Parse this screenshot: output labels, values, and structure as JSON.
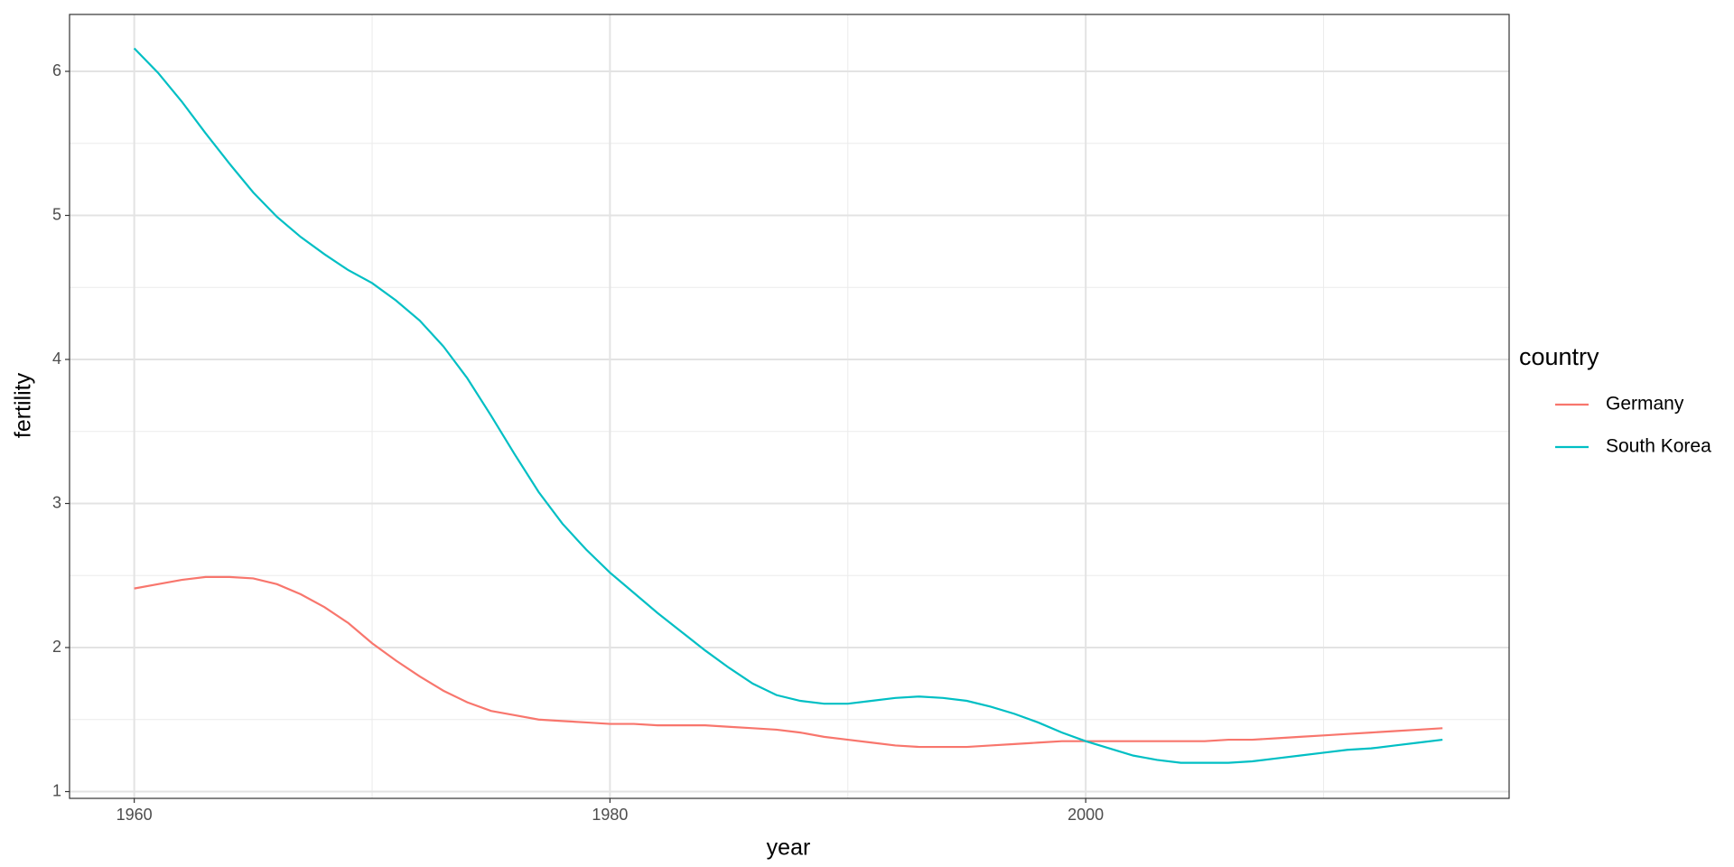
{
  "chart_data": {
    "type": "line",
    "x_label": "year",
    "y_label": "fertility",
    "legend_title": "country",
    "legend_position": "right",
    "grid": true,
    "x": [
      1960,
      1961,
      1962,
      1963,
      1964,
      1965,
      1966,
      1967,
      1968,
      1969,
      1970,
      1971,
      1972,
      1973,
      1974,
      1975,
      1976,
      1977,
      1978,
      1979,
      1980,
      1981,
      1982,
      1983,
      1984,
      1985,
      1986,
      1987,
      1988,
      1989,
      1990,
      1991,
      1992,
      1993,
      1994,
      1995,
      1996,
      1997,
      1998,
      1999,
      2000,
      2001,
      2002,
      2003,
      2004,
      2005,
      2006,
      2007,
      2008,
      2009,
      2010,
      2011,
      2012,
      2013,
      2014,
      2015
    ],
    "series": [
      {
        "name": "Germany",
        "color": "#f8766d",
        "values": [
          2.41,
          2.44,
          2.47,
          2.49,
          2.49,
          2.48,
          2.44,
          2.37,
          2.28,
          2.17,
          2.03,
          1.91,
          1.8,
          1.7,
          1.62,
          1.56,
          1.53,
          1.5,
          1.49,
          1.48,
          1.47,
          1.47,
          1.46,
          1.46,
          1.46,
          1.45,
          1.44,
          1.43,
          1.41,
          1.38,
          1.36,
          1.34,
          1.32,
          1.31,
          1.31,
          1.31,
          1.32,
          1.33,
          1.34,
          1.35,
          1.35,
          1.35,
          1.35,
          1.35,
          1.35,
          1.35,
          1.36,
          1.36,
          1.37,
          1.38,
          1.39,
          1.4,
          1.41,
          1.42,
          1.43,
          1.44
        ]
      },
      {
        "name": "South Korea",
        "color": "#00bfc4",
        "values": [
          6.16,
          5.99,
          5.79,
          5.57,
          5.36,
          5.16,
          4.99,
          4.85,
          4.73,
          4.62,
          4.53,
          4.41,
          4.27,
          4.09,
          3.87,
          3.61,
          3.34,
          3.08,
          2.86,
          2.68,
          2.52,
          2.38,
          2.24,
          2.11,
          1.98,
          1.86,
          1.75,
          1.67,
          1.63,
          1.61,
          1.61,
          1.63,
          1.65,
          1.66,
          1.65,
          1.63,
          1.59,
          1.54,
          1.48,
          1.41,
          1.35,
          1.3,
          1.25,
          1.22,
          1.2,
          1.2,
          1.2,
          1.21,
          1.23,
          1.25,
          1.27,
          1.29,
          1.3,
          1.32,
          1.34,
          1.36
        ]
      }
    ],
    "xlim": [
      1957.28,
      2017.8
    ],
    "xticks": [
      1960,
      1980,
      2000
    ],
    "ylim": [
      0.953,
      6.395
    ],
    "yticks": [
      1,
      2,
      3,
      4,
      5,
      6
    ]
  }
}
